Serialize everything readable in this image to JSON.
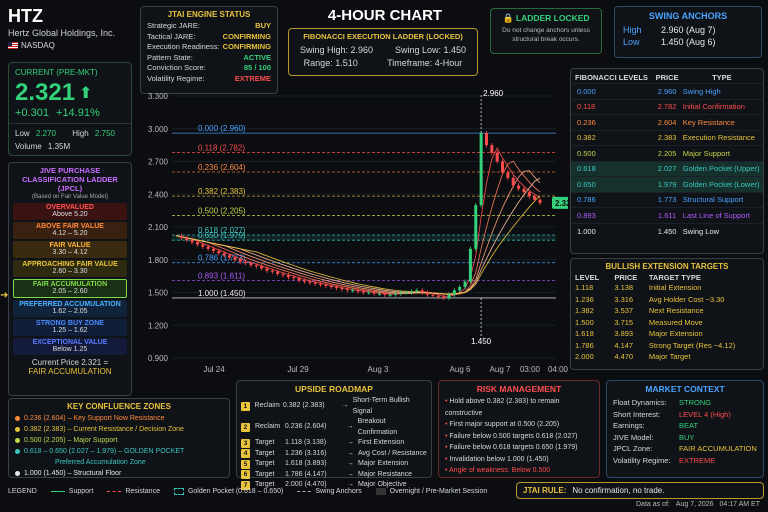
{
  "header": {
    "ticker": "HTZ",
    "company": "Hertz Global Holdings, Inc.",
    "exchange": "NASDAQ"
  },
  "quote": {
    "label": "CURRENT (PRE-MKT)",
    "price": "2.321",
    "change": "+0.301",
    "change_pct": "+14.91%",
    "low_label": "Low",
    "low": "2.270",
    "high_label": "High",
    "high": "2.750",
    "volume_label": "Volume",
    "volume": "1.35M"
  },
  "jpcl": {
    "title": "JIVE PURCHASE CLASSIFICATION LADDER (JPCL)",
    "subtitle": "(Based on Fair Value Model)",
    "levels": [
      {
        "name": "OVERVALUED",
        "range": "Above 5.20",
        "color": "#ff5252",
        "bg": "#3a1212"
      },
      {
        "name": "ABOVE FAIR VALUE",
        "range": "4.12 – 5.20",
        "color": "#ff8a3c",
        "bg": "#3a2010"
      },
      {
        "name": "FAIR VALUE",
        "range": "3.30 – 4.12",
        "color": "#ffb13c",
        "bg": "#3a2a10"
      },
      {
        "name": "APPROACHING FAIR VALUE",
        "range": "2.60 – 3.30",
        "color": "#e8c33c",
        "bg": "#2e2a10"
      },
      {
        "name": "FAIR ACCUMULATION",
        "range": "2.05 – 2.60",
        "color": "#7ddc4a",
        "bg": "#1a3014"
      },
      {
        "name": "PREFERRED ACCUMULATION",
        "range": "1.62 – 2.05",
        "color": "#4ab0ff",
        "bg": "#10233a"
      },
      {
        "name": "STRONG BUY ZONE",
        "range": "1.25 – 1.62",
        "color": "#4a8cff",
        "bg": "#101e3a"
      },
      {
        "name": "EXCEPTIONAL VALUE",
        "range": "Below 1.25",
        "color": "#5a7bff",
        "bg": "#141a3a"
      }
    ],
    "current_label": "Current Price",
    "current_value": "2.321 =",
    "current_zone": "FAIR ACCUMULATION"
  },
  "engine": {
    "title": "JTAI ENGINE STATUS",
    "rows": [
      {
        "k": "Strategic JARE:",
        "v": "BUY",
        "color": "#e8c33c"
      },
      {
        "k": "Tactical JARE:",
        "v": "CONFIRMING",
        "color": "#e8c33c"
      },
      {
        "k": "Execution Readiness:",
        "v": "CONFIRMING",
        "color": "#e8c33c"
      },
      {
        "k": "Pattern State:",
        "v": "ACTIVE",
        "color": "#33d17a"
      },
      {
        "k": "Conviction Score:",
        "v": "85 / 100",
        "color": "#33d17a"
      },
      {
        "k": "Volatility Regime:",
        "v": "EXTREME",
        "color": "#ff4d4d"
      }
    ]
  },
  "chart_title": "4-HOUR CHART",
  "fib_ladder": {
    "title": "FIBONACCI EXECUTION LADDER (LOCKED)",
    "swing_high_label": "Swing High:",
    "swing_high": "2.960",
    "swing_low_label": "Swing Low:",
    "swing_low": "1.450",
    "range_label": "Range:",
    "range": "1.510",
    "timeframe_label": "Timeframe:",
    "timeframe": "4-Hour"
  },
  "locked": {
    "title": "LADDER LOCKED",
    "text": "Do not change anchors unless structural break occurs."
  },
  "anchors": {
    "title": "SWING ANCHORS",
    "high_label": "High",
    "high": "2.960 (Aug 7)",
    "low_label": "Low",
    "low": "1.450 (Aug 6)"
  },
  "fib_table": {
    "headers": [
      "FIBONACCI LEVELS",
      "PRICE",
      "TYPE"
    ],
    "rows": [
      {
        "level": "0.000",
        "price": "2.960",
        "type": "Swing High",
        "color": "#4aa3ff"
      },
      {
        "level": "0.118",
        "price": "2.782",
        "type": "Initial Confirmation",
        "color": "#ff4d4d"
      },
      {
        "level": "0.236",
        "price": "2.604",
        "type": "Key Resistance",
        "color": "#ff8a3c"
      },
      {
        "level": "0.382",
        "price": "2.383",
        "type": "Execution Resistance",
        "color": "#e8c33c"
      },
      {
        "level": "0.500",
        "price": "2.205",
        "type": "Major Support",
        "color": "#c8d64a"
      },
      {
        "level": "0.618",
        "price": "2.027",
        "type": "Golden Pocket (Upper)",
        "color": "#3cc7c0"
      },
      {
        "level": "0.650",
        "price": "1.979",
        "type": "Golden Pocket (Lower)",
        "color": "#3cc7c0"
      },
      {
        "level": "0.786",
        "price": "1.773",
        "type": "Structural Support",
        "color": "#4aa3ff"
      },
      {
        "level": "0.893",
        "price": "1.611",
        "type": "Last Line of Support",
        "color": "#b05cff"
      },
      {
        "level": "1.000",
        "price": "1.450",
        "type": "Swing Low",
        "color": "#e8e8e8"
      }
    ]
  },
  "bull_targets": {
    "title": "BULLISH EXTENSION TARGETS",
    "headers": [
      "LEVEL",
      "PRICE",
      "TARGET TYPE"
    ],
    "rows": [
      {
        "level": "1.118",
        "price": "3.138",
        "type": "Initial Extension"
      },
      {
        "level": "1.236",
        "price": "3.316",
        "type": "Avg Holder Cost ~3.30"
      },
      {
        "level": "1.382",
        "price": "3.537",
        "type": "Next Resistance"
      },
      {
        "level": "1.500",
        "price": "3.715",
        "type": "Measured Move"
      },
      {
        "level": "1.618",
        "price": "3.893",
        "type": "Major Extension"
      },
      {
        "level": "1.786",
        "price": "4.147",
        "type": "Strong Target (Res ~4.12)"
      },
      {
        "level": "2.000",
        "price": "4.470",
        "type": "Major Target"
      }
    ]
  },
  "chart_data": {
    "type": "line",
    "yticks": [
      "3.300",
      "3.000",
      "2.700",
      "2.400",
      "2.100",
      "1.800",
      "1.500",
      "1.200",
      "0.900"
    ],
    "ylim": [
      0.9,
      3.3
    ],
    "xticks": [
      "Jul 24",
      "Jul 29",
      "Aug 3",
      "Aug 6",
      "Aug 7",
      "03:00",
      "04:00"
    ],
    "fib_levels": [
      {
        "label": "0.000 (2.960)",
        "value": 2.96,
        "color": "#4aa3ff"
      },
      {
        "label": "0.118 (2.782)",
        "value": 2.782,
        "color": "#ff4d4d"
      },
      {
        "label": "0.236 (2.604)",
        "value": 2.604,
        "color": "#ff8a3c"
      },
      {
        "label": "0.382 (2.383)",
        "value": 2.383,
        "color": "#e8c33c"
      },
      {
        "label": "0.500 (2.205)",
        "value": 2.205,
        "color": "#c8d64a"
      },
      {
        "label": "0.618 (2.027)",
        "value": 2.027,
        "color": "#3cc7c0"
      },
      {
        "label": "0.650 (1.979)",
        "value": 1.979,
        "color": "#3cc7c0"
      },
      {
        "label": "0.786 (1.773)",
        "value": 1.773,
        "color": "#4aa3ff"
      },
      {
        "label": "0.893 (1.611)",
        "value": 1.611,
        "color": "#b05cff"
      },
      {
        "label": "1.000 (1.450)",
        "value": 1.45,
        "color": "#e8e8e8"
      }
    ],
    "swing_high_label": "2.960",
    "swing_low_label": "1.450",
    "last_price_label": "2.321",
    "price_path": [
      2.02,
      2.0,
      1.98,
      1.96,
      1.94,
      1.92,
      1.9,
      1.88,
      1.86,
      1.84,
      1.82,
      1.8,
      1.78,
      1.77,
      1.75,
      1.74,
      1.72,
      1.7,
      1.69,
      1.67,
      1.66,
      1.64,
      1.63,
      1.61,
      1.6,
      1.59,
      1.58,
      1.57,
      1.56,
      1.55,
      1.54,
      1.53,
      1.52,
      1.52,
      1.51,
      1.5,
      1.5,
      1.49,
      1.49,
      1.48,
      1.48,
      1.49,
      1.5,
      1.5,
      1.51,
      1.52,
      1.5,
      1.48,
      1.47,
      1.46,
      1.45,
      1.48,
      1.52,
      1.55,
      1.6,
      1.9,
      2.3,
      2.96,
      2.85,
      2.78,
      2.7,
      2.6,
      2.55,
      2.48,
      2.45,
      2.42,
      2.38,
      2.35,
      2.32
    ]
  },
  "confluence": {
    "title": "KEY CONFLUENCE ZONES",
    "items": [
      {
        "text": "0.236 (2.604) – Key Support Now Resistance",
        "color": "#ff8a3c"
      },
      {
        "text": "0.382 (2.383) – Current Resistance / Decision Zone",
        "color": "#e8c33c"
      },
      {
        "text": "0.500 (2.205) – Major Support",
        "color": "#c8d64a"
      },
      {
        "text": "0.618 – 0.650 (2.027 – 1.979) – GOLDEN POCKET",
        "color": "#3cc7c0"
      },
      {
        "text": "Preferred Accumulation Zone",
        "color": "#3cc7c0"
      },
      {
        "text": "1.000 (1.450) – Structural Floor",
        "color": "#e8e8e8"
      }
    ]
  },
  "roadmap": {
    "title": "UPSIDE ROADMAP",
    "steps": [
      {
        "n": "1",
        "action": "Reclaim",
        "level": "0.382 (2.383)",
        "desc": "Short-Term Bullish Signal"
      },
      {
        "n": "2",
        "action": "Reclaim",
        "level": "0.236 (2.604)",
        "desc": "Breakout Confirmation"
      },
      {
        "n": "3",
        "action": "Target",
        "level": "1.118 (3.138)",
        "desc": "First Extension"
      },
      {
        "n": "4",
        "action": "Target",
        "level": "1.236 (3.316)",
        "desc": "Avg Cost / Resistance"
      },
      {
        "n": "5",
        "action": "Target",
        "level": "1.618 (3.893)",
        "desc": "Major Extension"
      },
      {
        "n": "6",
        "action": "Target",
        "level": "1.786 (4.147)",
        "desc": "Major Resistance"
      },
      {
        "n": "7",
        "action": "Target",
        "level": "2.000 (4.470)",
        "desc": "Major Objective"
      }
    ]
  },
  "risk": {
    "title": "RISK MANAGEMENT",
    "items": [
      "Hold above 0.382 (2.383) to remain constructive",
      "First major support at 0.500 (2.205)",
      "Failure below 0.500 targets 0.618 (2.027)",
      "Failure below 0.618 targets 0.650 (1.979)",
      "Invalidation below 1.000 (1.450)"
    ],
    "weakness": "Angle of weakness: Below 0.500"
  },
  "market": {
    "title": "MARKET CONTEXT",
    "rows": [
      {
        "k": "Float Dynamics:",
        "v": "STRONG",
        "color": "#33d17a"
      },
      {
        "k": "Short Interest:",
        "v": "LEVEL 4 (High)",
        "color": "#ff4d4d"
      },
      {
        "k": "Earnings:",
        "v": "BEAT",
        "color": "#33d17a"
      },
      {
        "k": "JIVE Model:",
        "v": "BUY",
        "color": "#33d17a"
      },
      {
        "k": "JPCL Zone:",
        "v": "FAIR ACCUMULATION",
        "color": "#e8c33c"
      },
      {
        "k": "Volatility Regime:",
        "v": "EXTREME",
        "color": "#ff4d4d"
      }
    ]
  },
  "legend": {
    "title": "LEGEND",
    "items": [
      "Support",
      "Resistance",
      "Golden Pocket (0.618 – 0.650)",
      "Swing Anchors",
      "Overnight / Pre-Market Session"
    ]
  },
  "rule": {
    "label": "JTAI RULE:",
    "text": "No confirmation, no trade."
  },
  "footer": {
    "label": "Data as of:",
    "date": "Aug 7, 2026",
    "time": "04:17 AM ET"
  },
  "colors": {
    "green": "#33d17a",
    "red": "#ff4d4d",
    "gold": "#e8c33c",
    "blue": "#4aa3ff"
  }
}
